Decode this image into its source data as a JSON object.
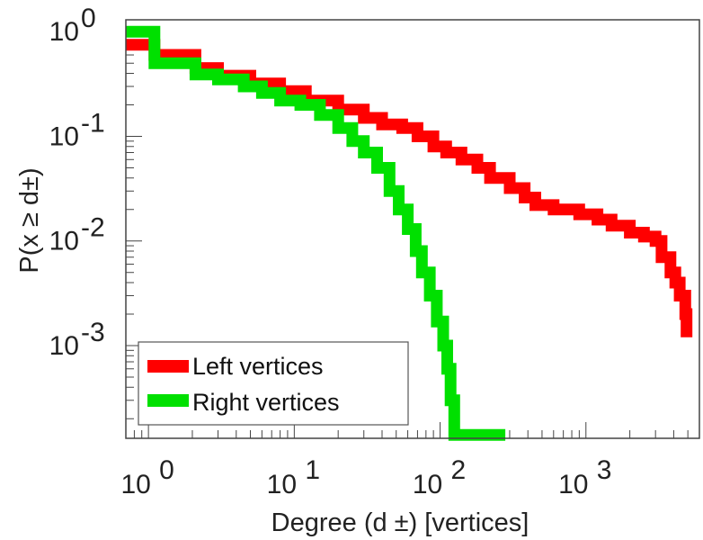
{
  "chart_data": {
    "type": "line",
    "step": true,
    "xscale": "log",
    "yscale": "log",
    "xlim": [
      0.7,
      6000
    ],
    "ylim": [
      0.00013,
      1.3
    ],
    "xlabel": "Degree (d ±) [vertices]",
    "ylabel": "P(x ≥ d±)",
    "x_ticks": [
      {
        "base": "10",
        "exp": "0",
        "value": 1
      },
      {
        "base": "10",
        "exp": "1",
        "value": 10
      },
      {
        "base": "10",
        "exp": "2",
        "value": 100
      },
      {
        "base": "10",
        "exp": "3",
        "value": 1000
      }
    ],
    "y_ticks": [
      {
        "base": "10",
        "exp": "0",
        "value": 1
      },
      {
        "base": "10",
        "exp": "-1",
        "value": 0.1
      },
      {
        "base": "10",
        "exp": "-2",
        "value": 0.01
      },
      {
        "base": "10",
        "exp": "-3",
        "value": 0.001
      }
    ],
    "grid": false,
    "legend_position": "bottom-left",
    "series": [
      {
        "name": "Left vertices",
        "color": "#ff0000",
        "points": [
          [
            0.7,
            0.75
          ],
          [
            1.1,
            0.75
          ],
          [
            1.1,
            0.6
          ],
          [
            2.1,
            0.6
          ],
          [
            2.1,
            0.45
          ],
          [
            3,
            0.45
          ],
          [
            3,
            0.38
          ],
          [
            5,
            0.32
          ],
          [
            8,
            0.27
          ],
          [
            12,
            0.22
          ],
          [
            20,
            0.18
          ],
          [
            30,
            0.15
          ],
          [
            40,
            0.13
          ],
          [
            55,
            0.12
          ],
          [
            70,
            0.1
          ],
          [
            90,
            0.08
          ],
          [
            110,
            0.07
          ],
          [
            140,
            0.06
          ],
          [
            180,
            0.05
          ],
          [
            220,
            0.04
          ],
          [
            300,
            0.032
          ],
          [
            380,
            0.026
          ],
          [
            450,
            0.022
          ],
          [
            600,
            0.02
          ],
          [
            900,
            0.018
          ],
          [
            1200,
            0.016
          ],
          [
            1500,
            0.014
          ],
          [
            2000,
            0.012
          ],
          [
            2500,
            0.011
          ],
          [
            3000,
            0.01
          ],
          [
            3300,
            0.007
          ],
          [
            3800,
            0.005
          ],
          [
            4100,
            0.004
          ],
          [
            4400,
            0.003
          ],
          [
            4800,
            0.002
          ],
          [
            4900,
            0.0012
          ]
        ]
      },
      {
        "name": "Right vertices",
        "color": "#00e000",
        "points": [
          [
            0.7,
            1.0
          ],
          [
            1.1,
            1.0
          ],
          [
            1.1,
            0.5
          ],
          [
            2.1,
            0.5
          ],
          [
            2.1,
            0.39
          ],
          [
            3,
            0.39
          ],
          [
            3,
            0.35
          ],
          [
            4.5,
            0.3
          ],
          [
            6,
            0.26
          ],
          [
            8,
            0.22
          ],
          [
            11,
            0.2
          ],
          [
            15,
            0.16
          ],
          [
            20,
            0.12
          ],
          [
            25,
            0.09
          ],
          [
            30,
            0.07
          ],
          [
            37,
            0.05
          ],
          [
            45,
            0.03
          ],
          [
            52,
            0.02
          ],
          [
            60,
            0.013
          ],
          [
            68,
            0.008
          ],
          [
            75,
            0.005
          ],
          [
            85,
            0.003
          ],
          [
            95,
            0.0017
          ],
          [
            105,
            0.001
          ],
          [
            112,
            0.0006
          ],
          [
            118,
            0.0003
          ],
          [
            125,
            0.00017
          ],
          [
            125,
            0.00014
          ],
          [
            280,
            0.00014
          ]
        ]
      }
    ]
  }
}
